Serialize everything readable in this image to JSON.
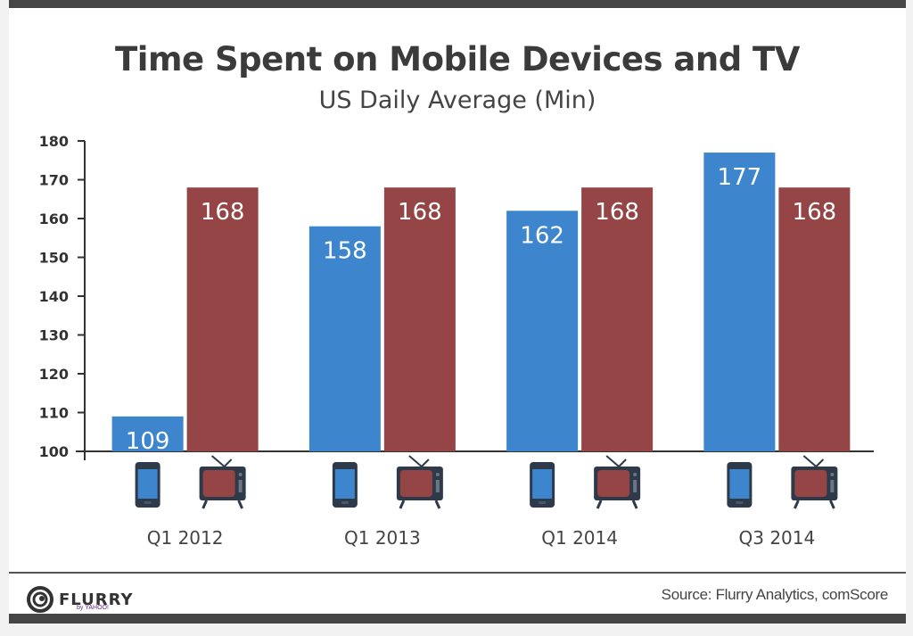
{
  "title": "Time Spent on Mobile Devices and TV",
  "subtitle": "US Daily Average (Min)",
  "source": "Source: Flurry Analytics, comScore",
  "logo": {
    "name": "FLURRY",
    "byline": "by YAHOO!"
  },
  "colors": {
    "mobile": "#3d85cc",
    "tv": "#954545",
    "axis": "#333333",
    "label": "#ffffff"
  },
  "chart_data": {
    "type": "bar",
    "title": "Time Spent on Mobile Devices and TV",
    "subtitle": "US Daily Average (Min)",
    "xlabel": "",
    "ylabel": "",
    "ylim": [
      100,
      180
    ],
    "yticks": [
      100,
      110,
      120,
      130,
      140,
      150,
      160,
      170,
      180
    ],
    "categories": [
      "Q1 2012",
      "Q1 2013",
      "Q1 2014",
      "Q3 2014"
    ],
    "series": [
      {
        "name": "Mobile Devices",
        "icon": "smartphone-icon",
        "values": [
          109,
          158,
          162,
          177
        ]
      },
      {
        "name": "TV",
        "icon": "tv-icon",
        "values": [
          168,
          168,
          168,
          168
        ]
      }
    ],
    "grid": false,
    "legend": "icons below bars"
  }
}
